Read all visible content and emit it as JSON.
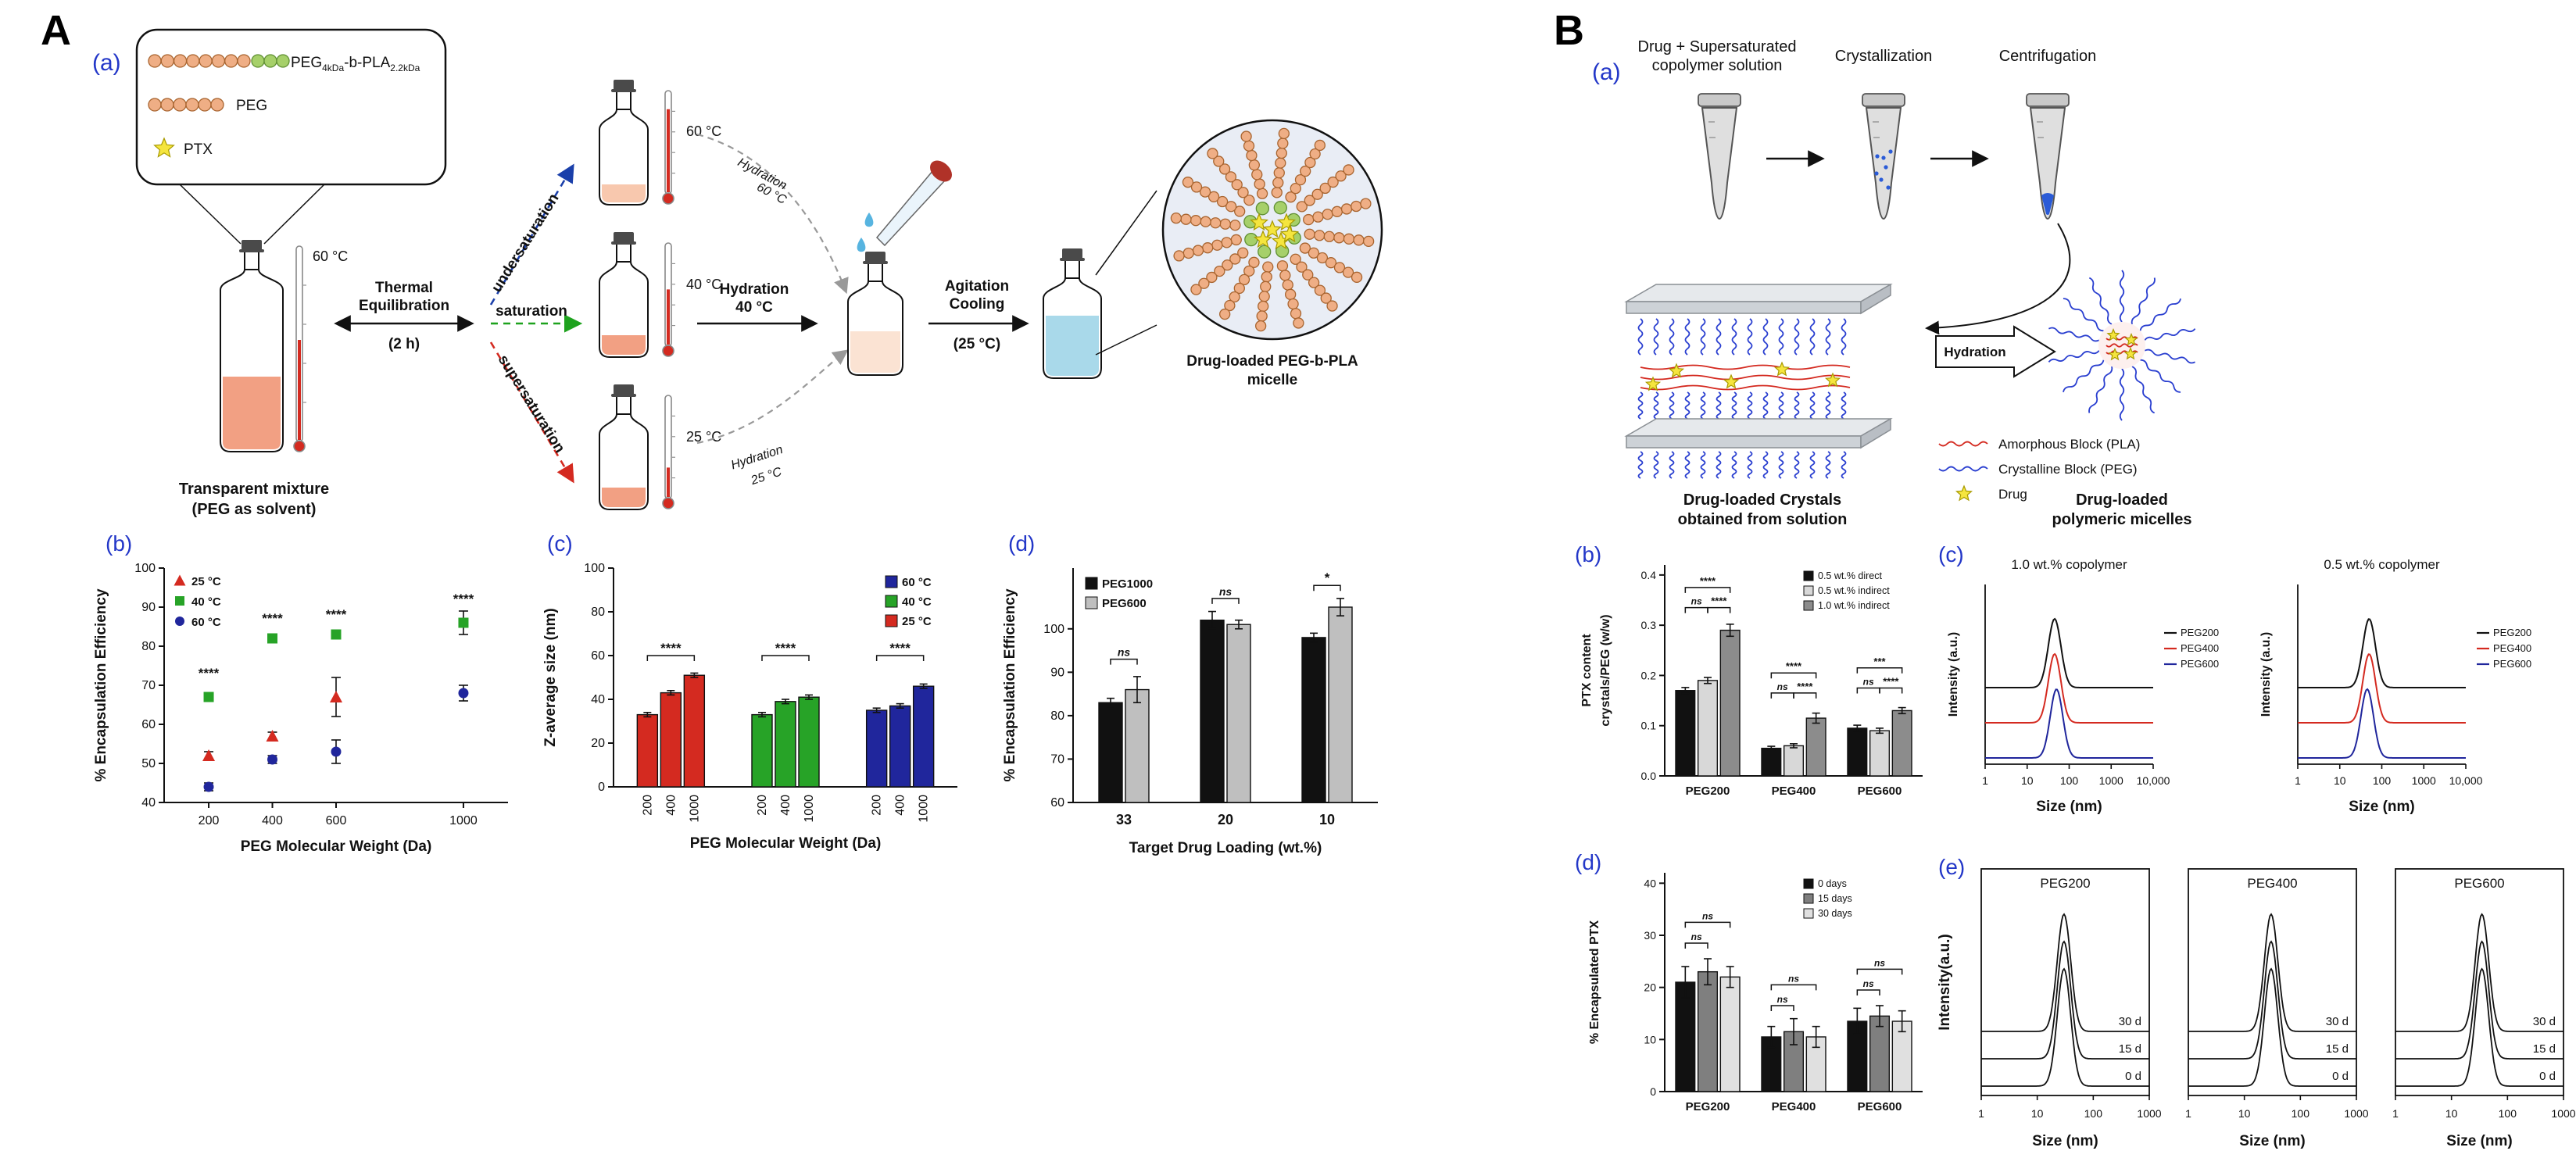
{
  "figure": {
    "panelA": {
      "tag": "A",
      "a": {
        "tag": "(a)",
        "legend": {
          "p1": "PEG",
          "p1sub": "4kDa",
          "p2": "-b-PLA",
          "p2sub": "2.2kDa",
          "peg": "PEG",
          "ptx": "PTX"
        },
        "temp_main": "60 °C",
        "mixture_caption_1": "Transparent mixture",
        "mixture_caption_2": "(PEG as solvent)",
        "thermal_1": "Thermal",
        "thermal_2": "Equilibration",
        "thermal_3": "(2 h)",
        "undersaturation": "undersaturation",
        "saturation": "saturation",
        "supersaturation": "supersaturation",
        "temp_60": "60 °C",
        "temp_40": "40 °C",
        "temp_25": "25 °C",
        "hydration_60_1": "Hydration",
        "hydration_60_2": "60 °C",
        "hydration_40_1": "Hydration",
        "hydration_40_2": "40 °C",
        "hydration_25_1": "Hydration",
        "hydration_25_2": "25 °C",
        "agitation_1": "Agitation",
        "agitation_2": "Cooling",
        "agitation_3": "(25 °C)",
        "micelle_caption_1": "Drug-loaded PEG-b-PLA",
        "micelle_caption_2": "micelle"
      },
      "b_tag": "(b)",
      "c_tag": "(c)",
      "d_tag": "(d)"
    },
    "panelB": {
      "tag": "B",
      "a": {
        "tag": "(a)",
        "step1_1": "Drug + Supersaturated",
        "step1_2": "copolymer solution",
        "step2": "Crystallization",
        "step3": "Centrifugation",
        "hydration": "Hydration",
        "crystals_caption_1": "Drug-loaded Crystals",
        "crystals_caption_2": "obtained from solution",
        "micelles_caption_1": "Drug-loaded",
        "micelles_caption_2": "polymeric micelles",
        "legend_amorphous": "Amorphous Block (PLA)",
        "legend_crystalline": "Crystalline Block (PEG)",
        "legend_drug": "Drug"
      },
      "b_tag": "(b)",
      "c_tag": "(c)",
      "d_tag": "(d)",
      "e_tag": "(e)"
    },
    "colors": {
      "tag_blue": "#2337c8",
      "temp25_red": "#d42a20",
      "temp40_green": "#1ea21e",
      "temp60_blue": "#20269c",
      "peg_orange": "#efae85",
      "pla_green": "#a6d06a",
      "drug_yellow": "#f5e53e",
      "liquid_salmon": "#f2a083",
      "liquid_blue": "#a9d9ea",
      "crystal_blue": "#2a3fd0",
      "amorphous_red": "#d42a20"
    }
  },
  "chart_data": [
    {
      "id": "chartAb",
      "type": "scatter",
      "title": "",
      "ylabel": "% Encapsulation Efficiency",
      "xlabel": "PEG Molecular Weight (Da)",
      "ylim": [
        40,
        100
      ],
      "yticks": [
        40,
        50,
        60,
        70,
        80,
        90,
        100
      ],
      "xlim": [
        60,
        1140
      ],
      "xticks": [
        200,
        400,
        600,
        1000
      ],
      "series": [
        {
          "name": "25 °C",
          "marker": "triangle",
          "color": "#d42a20",
          "x": [
            200,
            400,
            600
          ],
          "y": [
            52,
            57,
            67
          ],
          "err": [
            1,
            1,
            5
          ]
        },
        {
          "name": "40 °C",
          "marker": "square",
          "color": "#27a327",
          "x": [
            200,
            400,
            600,
            1000
          ],
          "y": [
            67,
            82,
            83,
            86
          ],
          "err": [
            1,
            1,
            1,
            3
          ]
        },
        {
          "name": "60 °C",
          "marker": "circle",
          "color": "#20269c",
          "x": [
            200,
            400,
            600,
            1000
          ],
          "y": [
            44,
            51,
            53,
            68
          ],
          "err": [
            1,
            1,
            3,
            2
          ]
        }
      ],
      "annotations": [
        {
          "x": 200,
          "y": 72,
          "label": "****"
        },
        {
          "x": 400,
          "y": 86,
          "label": "****"
        },
        {
          "x": 600,
          "y": 87,
          "label": "****"
        },
        {
          "x": 1000,
          "y": 91,
          "label": "****"
        }
      ]
    },
    {
      "id": "chartAc",
      "type": "clusterbar",
      "ylabel": "Z-average size (nm)",
      "xlabel": "PEG Molecular Weight (Da)",
      "ylim": [
        0,
        100
      ],
      "yticks": [
        0,
        20,
        40,
        60,
        80,
        100
      ],
      "legend": [
        {
          "name": "60 °C",
          "color": "#20269c"
        },
        {
          "name": "40 °C",
          "color": "#27a327"
        },
        {
          "name": "25 °C",
          "color": "#d42a20"
        }
      ],
      "clusters": [
        {
          "color": "#d42a20",
          "labels": [
            "200",
            "400",
            "1000"
          ],
          "values": [
            33,
            43,
            51
          ],
          "err": [
            1,
            1,
            1
          ]
        },
        {
          "color": "#27a327",
          "labels": [
            "200",
            "400",
            "1000"
          ],
          "values": [
            33,
            39,
            41
          ],
          "err": [
            1,
            1,
            1
          ]
        },
        {
          "color": "#20269c",
          "labels": [
            "200",
            "400",
            "1000"
          ],
          "values": [
            35,
            37,
            46
          ],
          "err": [
            1,
            1,
            1
          ]
        }
      ],
      "brackets": [
        {
          "c": 0,
          "b1": 0,
          "b2": 2,
          "y": 60,
          "label": "****"
        },
        {
          "c": 1,
          "b1": 0,
          "b2": 2,
          "y": 60,
          "label": "****"
        },
        {
          "c": 2,
          "b1": 0,
          "b2": 2,
          "y": 60,
          "label": "****"
        }
      ]
    },
    {
      "id": "chartAd",
      "type": "groupbar",
      "ylabel": "% Encapsulation Efficiency",
      "xlabel": "Target Drug Loading (wt.%)",
      "ylim": [
        60,
        114
      ],
      "yticks": [
        60,
        70,
        80,
        90,
        100
      ],
      "categories": [
        "33",
        "20",
        "10"
      ],
      "series": [
        {
          "name": "PEG1000",
          "color": "#111111",
          "values": [
            83,
            102,
            98
          ],
          "err": [
            1,
            2,
            1
          ]
        },
        {
          "name": "PEG600",
          "color": "#bfbfbf",
          "values": [
            86,
            101,
            105
          ],
          "err": [
            3,
            1,
            2
          ]
        }
      ],
      "brackets": [
        {
          "cat": 0,
          "s1": 0,
          "s2": 1,
          "y": 93,
          "label": "ns"
        },
        {
          "cat": 1,
          "s1": 0,
          "s2": 1,
          "y": 107,
          "label": "ns"
        },
        {
          "cat": 2,
          "s1": 0,
          "s2": 1,
          "y": 110,
          "label": "*"
        }
      ],
      "legend_pos": "tl"
    },
    {
      "id": "chartBb",
      "type": "groupbar",
      "small": true,
      "ylabel": [
        "PTX content",
        "crystals/PEG (w/w)"
      ],
      "xlabel": "",
      "ylim": [
        0,
        0.42
      ],
      "yticks": [
        0,
        0.1,
        0.2,
        0.3,
        0.4
      ],
      "ydec": 1,
      "categories": [
        "PEG200",
        "PEG400",
        "PEG600"
      ],
      "series": [
        {
          "name": "0.5 wt.% direct",
          "color": "#111111",
          "values": [
            0.17,
            0.055,
            0.095
          ],
          "err": [
            0.006,
            0.004,
            0.006
          ]
        },
        {
          "name": "0.5 wt.% indirect",
          "color": "#d8d8d8",
          "values": [
            0.19,
            0.06,
            0.09
          ],
          "err": [
            0.006,
            0.004,
            0.005
          ]
        },
        {
          "name": "1.0 wt.% indirect",
          "color": "#8c8c8c",
          "values": [
            0.29,
            0.115,
            0.13
          ],
          "err": [
            0.012,
            0.01,
            0.006
          ]
        }
      ],
      "brackets": [
        {
          "cat": 0,
          "s1": 0,
          "s2": 2,
          "y": 0.375,
          "label": "****"
        },
        {
          "cat": 0,
          "s1": 0,
          "s2": 1,
          "y": 0.335,
          "label": "ns"
        },
        {
          "cat": 0,
          "s1": 1,
          "s2": 2,
          "y": 0.335,
          "label": "****"
        },
        {
          "cat": 1,
          "s1": 0,
          "s2": 2,
          "y": 0.205,
          "label": "****"
        },
        {
          "cat": 1,
          "s1": 0,
          "s2": 1,
          "y": 0.165,
          "label": "ns"
        },
        {
          "cat": 1,
          "s1": 1,
          "s2": 2,
          "y": 0.165,
          "label": "****"
        },
        {
          "cat": 2,
          "s1": 0,
          "s2": 2,
          "y": 0.215,
          "label": "***"
        },
        {
          "cat": 2,
          "s1": 0,
          "s2": 1,
          "y": 0.175,
          "label": "ns"
        },
        {
          "cat": 2,
          "s1": 1,
          "s2": 2,
          "y": 0.175,
          "label": "****"
        }
      ],
      "legend_pos": "tr"
    },
    {
      "id": "chartBd",
      "type": "groupbar",
      "small": true,
      "ylabel": "% Encapsulated PTX",
      "xlabel": "",
      "ylim": [
        0,
        42
      ],
      "yticks": [
        0,
        10,
        20,
        30,
        40
      ],
      "categories": [
        "PEG200",
        "PEG400",
        "PEG600"
      ],
      "series": [
        {
          "name": "0 days",
          "color": "#111111",
          "values": [
            21,
            10.5,
            13.5
          ],
          "err": [
            3,
            2,
            2.5
          ]
        },
        {
          "name": "15 days",
          "color": "#7f7f7f",
          "values": [
            23,
            11.5,
            14.5
          ],
          "err": [
            2.5,
            2.5,
            2
          ]
        },
        {
          "name": "30 days",
          "color": "#e0e0e0",
          "values": [
            22,
            10.5,
            13.5
          ],
          "err": [
            2,
            2,
            2
          ]
        }
      ],
      "brackets": [
        {
          "cat": 0,
          "s1": 0,
          "s2": 1,
          "y": 28.5,
          "label": "ns"
        },
        {
          "cat": 0,
          "s1": 0,
          "s2": 2,
          "y": 32.5,
          "label": "ns"
        },
        {
          "cat": 1,
          "s1": 0,
          "s2": 1,
          "y": 16.5,
          "label": "ns"
        },
        {
          "cat": 1,
          "s1": 0,
          "s2": 2,
          "y": 20.5,
          "label": "ns"
        },
        {
          "cat": 2,
          "s1": 0,
          "s2": 1,
          "y": 19.5,
          "label": "ns"
        },
        {
          "cat": 2,
          "s1": 0,
          "s2": 2,
          "y": 23.5,
          "label": "ns"
        }
      ],
      "legend_pos": "tr"
    },
    {
      "id": "chartBc",
      "type": "dls",
      "xlabel": "Size (nm)",
      "ylabel": "Intensity (a.u.)",
      "xticklabels": [
        "1",
        "10",
        "100",
        "1000",
        "10,000"
      ],
      "decades": 4,
      "panels": [
        {
          "title": "1.0 wt.% copolymer",
          "curves": [
            {
              "name": "PEG200",
              "color": "#111111",
              "peak_nm": 45
            },
            {
              "name": "PEG400",
              "color": "#d42a20",
              "peak_nm": 45
            },
            {
              "name": "PEG600",
              "color": "#20269c",
              "peak_nm": 50
            }
          ]
        },
        {
          "title": "0.5 wt.% copolymer",
          "curves": [
            {
              "name": "PEG200",
              "color": "#111111",
              "peak_nm": 50
            },
            {
              "name": "PEG400",
              "color": "#d42a20",
              "peak_nm": 50
            },
            {
              "name": "PEG600",
              "color": "#20269c",
              "peak_nm": 45
            }
          ]
        }
      ]
    },
    {
      "id": "chartBe",
      "type": "dls2",
      "xlabel": "Size (nm)",
      "ylabel": "Intensity(a.u.)",
      "xticklabels": [
        "1",
        "10",
        "100",
        "1000"
      ],
      "decades": 3,
      "curve_labels": [
        "30 d",
        "15 d",
        "0 d"
      ],
      "panels": [
        {
          "title": "PEG200",
          "peak_nm": 30
        },
        {
          "title": "PEG400",
          "peak_nm": 30
        },
        {
          "title": "PEG600",
          "peak_nm": 35
        }
      ]
    }
  ]
}
